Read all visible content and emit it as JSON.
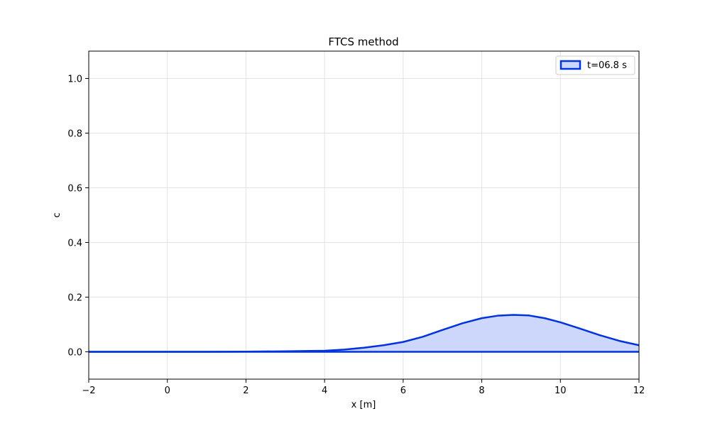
{
  "chart_data": {
    "type": "area",
    "title": "FTCS method",
    "xlabel": "x [m]",
    "ylabel": "c",
    "xlim": [
      -2,
      12
    ],
    "ylim": [
      -0.1,
      1.1
    ],
    "xticks": [
      -2,
      0,
      2,
      4,
      6,
      8,
      10,
      12
    ],
    "yticks": [
      0.0,
      0.2,
      0.4,
      0.6,
      0.8,
      1.0
    ],
    "xtick_labels": [
      "−2",
      "0",
      "2",
      "4",
      "6",
      "8",
      "10",
      "12"
    ],
    "ytick_labels": [
      "0.0",
      "0.2",
      "0.4",
      "0.6",
      "0.8",
      "1.0"
    ],
    "grid": true,
    "legend": {
      "position": "top-right",
      "entries": [
        "t=06.8 s"
      ]
    },
    "series": [
      {
        "name": "t=06.8 s",
        "line_color": "#0033dd",
        "fill_color": "#cdd6fb",
        "x": [
          -2,
          -1,
          0,
          1,
          2,
          3,
          3.5,
          4,
          4.5,
          5,
          5.5,
          6,
          6.5,
          7,
          7.5,
          8,
          8.4,
          8.8,
          9.2,
          9.6,
          10,
          10.5,
          11,
          11.5,
          12
        ],
        "y": [
          0,
          0,
          0,
          0,
          0.0005,
          0.002,
          0.003,
          0.004,
          0.008,
          0.015,
          0.024,
          0.036,
          0.055,
          0.08,
          0.104,
          0.123,
          0.132,
          0.135,
          0.133,
          0.123,
          0.108,
          0.085,
          0.061,
          0.04,
          0.024
        ]
      }
    ]
  }
}
